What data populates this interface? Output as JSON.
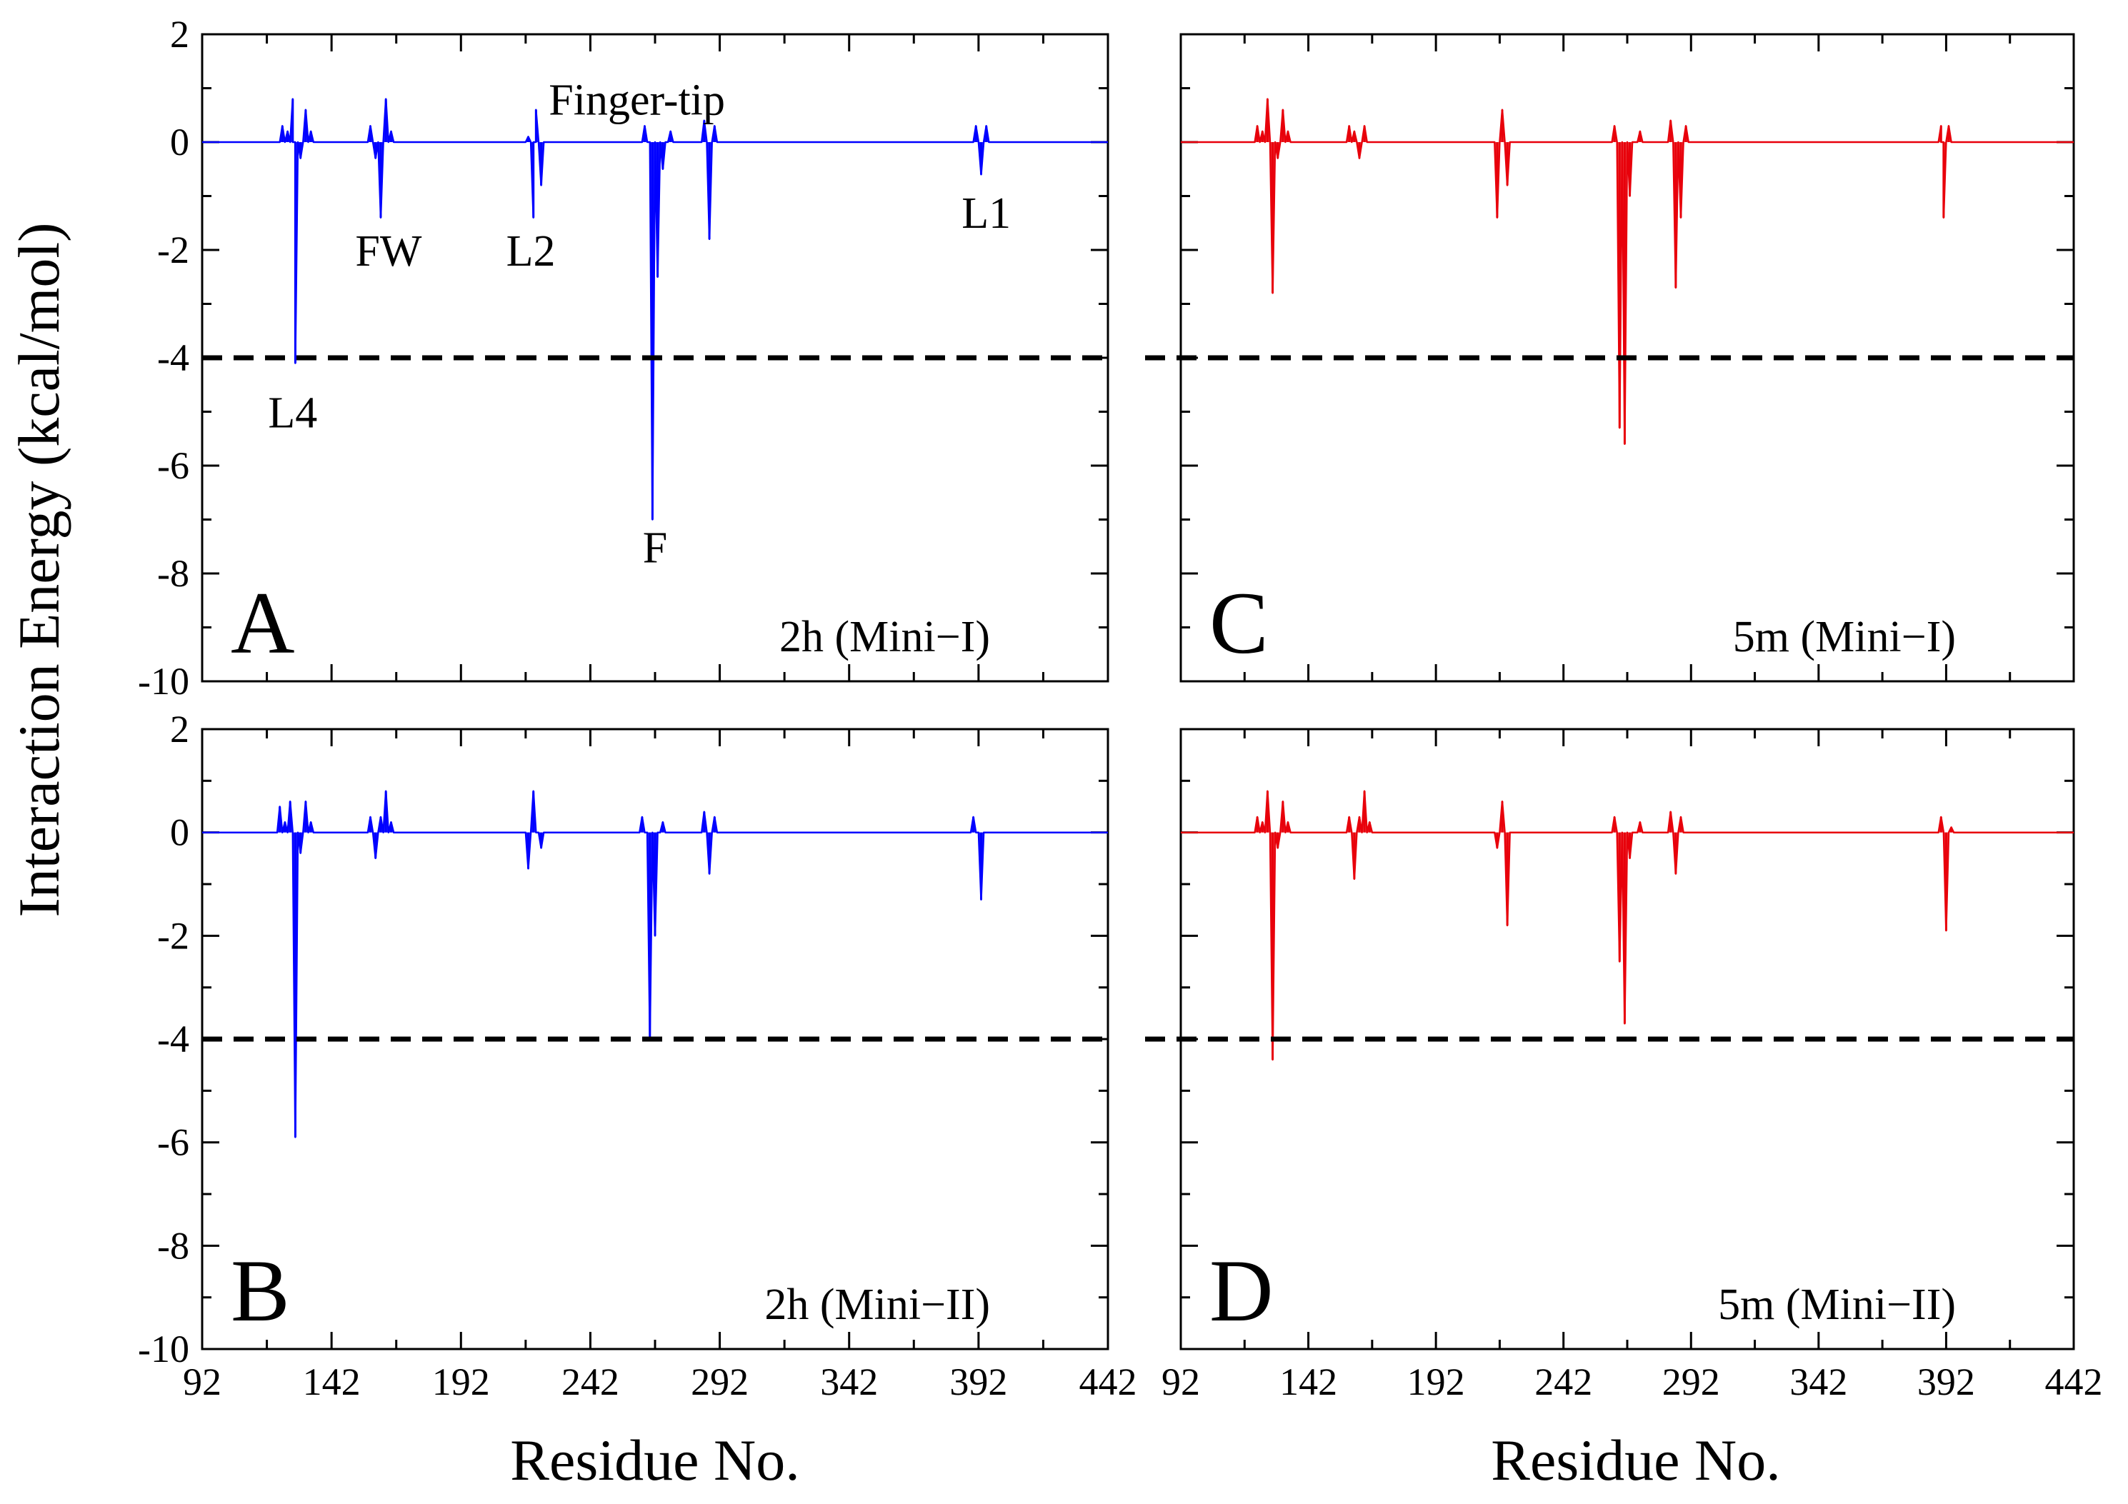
{
  "y_axis_title": "Interaction Energy (kcal/mol)",
  "x_axis_title": "Residue No.",
  "colors": {
    "blue": "#0000ff",
    "red": "#e8000b",
    "red_fill": "#e83030",
    "threshold": "#000000"
  },
  "chart_data": [
    {
      "type": "area",
      "panel": "A",
      "subtitle": "2h (Mini−I)",
      "color": "blue",
      "xlim": [
        92,
        442
      ],
      "ylim": [
        -10,
        2
      ],
      "xticks": [
        "92",
        "142",
        "192",
        "242",
        "292",
        "342",
        "392",
        "442"
      ],
      "yticks": [
        "2",
        "0",
        "-2",
        "-4",
        "-6",
        "-8",
        "-10"
      ],
      "threshold_y": -4,
      "grid": false,
      "annotations": [
        {
          "text": "L4",
          "x": 127,
          "y": -5.0
        },
        {
          "text": "FW",
          "x": 164,
          "y": -2.0
        },
        {
          "text": "L2",
          "x": 219,
          "y": -2.0
        },
        {
          "text": "Finger-tip",
          "x": 260,
          "y": 0.8
        },
        {
          "text": "F",
          "x": 267,
          "y": -7.5
        },
        {
          "text": "L1",
          "x": 395,
          "y": -1.3
        }
      ],
      "peaks": [
        [
          123,
          0.3
        ],
        [
          125,
          0.2
        ],
        [
          127,
          0.8
        ],
        [
          128,
          -4.1
        ],
        [
          130,
          -0.3
        ],
        [
          132,
          0.6
        ],
        [
          134,
          0.2
        ],
        [
          157,
          0.3
        ],
        [
          159,
          -0.3
        ],
        [
          161,
          -1.4
        ],
        [
          163,
          0.8
        ],
        [
          165,
          0.2
        ],
        [
          218,
          0.1
        ],
        [
          220,
          -1.4
        ],
        [
          221,
          0.6
        ],
        [
          223,
          -0.8
        ],
        [
          263,
          0.3
        ],
        [
          266,
          -7.0
        ],
        [
          268,
          -2.5
        ],
        [
          270,
          -0.5
        ],
        [
          273,
          0.2
        ],
        [
          286,
          0.4
        ],
        [
          288,
          -1.8
        ],
        [
          290,
          0.3
        ],
        [
          391,
          0.3
        ],
        [
          393,
          -0.6
        ],
        [
          395,
          0.3
        ]
      ]
    },
    {
      "type": "area",
      "panel": "B",
      "subtitle": "2h (Mini−II)",
      "color": "blue",
      "xlim": [
        92,
        442
      ],
      "ylim": [
        -10,
        2
      ],
      "xticks": [
        "92",
        "142",
        "192",
        "242",
        "292",
        "342",
        "392",
        "442"
      ],
      "yticks": [
        "2",
        "0",
        "-2",
        "-4",
        "-6",
        "-8",
        "-10"
      ],
      "threshold_y": -4,
      "grid": false,
      "annotations": [],
      "peaks": [
        [
          122,
          0.5
        ],
        [
          124,
          0.2
        ],
        [
          126,
          0.6
        ],
        [
          128,
          -5.9
        ],
        [
          130,
          -0.4
        ],
        [
          132,
          0.6
        ],
        [
          134,
          0.2
        ],
        [
          157,
          0.3
        ],
        [
          159,
          -0.5
        ],
        [
          161,
          0.3
        ],
        [
          163,
          0.8
        ],
        [
          165,
          0.2
        ],
        [
          218,
          -0.7
        ],
        [
          220,
          0.8
        ],
        [
          223,
          -0.3
        ],
        [
          262,
          0.3
        ],
        [
          265,
          -4.0
        ],
        [
          267,
          -2.0
        ],
        [
          270,
          0.2
        ],
        [
          286,
          0.4
        ],
        [
          288,
          -0.8
        ],
        [
          290,
          0.3
        ],
        [
          390,
          0.3
        ],
        [
          393,
          -1.3
        ]
      ]
    },
    {
      "type": "area",
      "panel": "C",
      "subtitle": "5m (Mini−I)",
      "color": "red",
      "xlim": [
        92,
        442
      ],
      "ylim": [
        -10,
        2
      ],
      "xticks": [
        "92",
        "142",
        "192",
        "242",
        "292",
        "342",
        "392",
        "442"
      ],
      "yticks": [
        "2",
        "0",
        "-2",
        "-4",
        "-6",
        "-8",
        "-10"
      ],
      "threshold_y": -4,
      "grid": false,
      "annotations": [],
      "peaks": [
        [
          122,
          0.3
        ],
        [
          124,
          0.2
        ],
        [
          126,
          0.8
        ],
        [
          128,
          -2.8
        ],
        [
          130,
          -0.3
        ],
        [
          132,
          0.6
        ],
        [
          134,
          0.2
        ],
        [
          158,
          0.3
        ],
        [
          160,
          0.2
        ],
        [
          162,
          -0.3
        ],
        [
          164,
          0.3
        ],
        [
          216,
          -1.4
        ],
        [
          218,
          0.6
        ],
        [
          220,
          -0.8
        ],
        [
          262,
          0.3
        ],
        [
          264,
          -5.3
        ],
        [
          266,
          -5.6
        ],
        [
          268,
          -1.0
        ],
        [
          272,
          0.2
        ],
        [
          284,
          0.4
        ],
        [
          286,
          -2.7
        ],
        [
          288,
          -1.4
        ],
        [
          290,
          0.3
        ],
        [
          390,
          0.3
        ],
        [
          391,
          -1.4
        ],
        [
          393,
          0.3
        ]
      ]
    },
    {
      "type": "area",
      "panel": "D",
      "subtitle": "5m (Mini−II)",
      "color": "red",
      "xlim": [
        92,
        442
      ],
      "ylim": [
        -10,
        2
      ],
      "xticks": [
        "92",
        "142",
        "192",
        "242",
        "292",
        "342",
        "392",
        "442"
      ],
      "yticks": [
        "2",
        "0",
        "-2",
        "-4",
        "-6",
        "-8",
        "-10"
      ],
      "threshold_y": -4,
      "grid": false,
      "annotations": [],
      "peaks": [
        [
          122,
          0.3
        ],
        [
          124,
          0.2
        ],
        [
          126,
          0.8
        ],
        [
          128,
          -4.4
        ],
        [
          130,
          -0.3
        ],
        [
          132,
          0.6
        ],
        [
          134,
          0.2
        ],
        [
          158,
          0.3
        ],
        [
          160,
          -0.9
        ],
        [
          162,
          0.3
        ],
        [
          164,
          0.8
        ],
        [
          166,
          0.2
        ],
        [
          216,
          -0.3
        ],
        [
          218,
          0.6
        ],
        [
          220,
          -1.8
        ],
        [
          262,
          0.3
        ],
        [
          264,
          -2.5
        ],
        [
          266,
          -3.7
        ],
        [
          268,
          -0.5
        ],
        [
          272,
          0.2
        ],
        [
          284,
          0.4
        ],
        [
          286,
          -0.8
        ],
        [
          288,
          0.3
        ],
        [
          390,
          0.3
        ],
        [
          392,
          -1.9
        ],
        [
          394,
          0.1
        ]
      ]
    }
  ]
}
